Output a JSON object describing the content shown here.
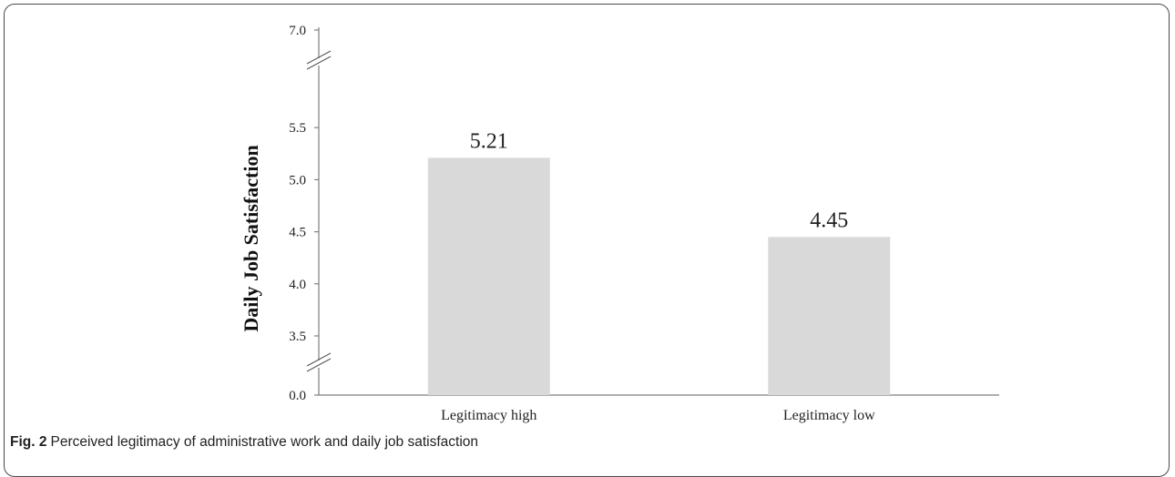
{
  "figure": {
    "label": "Fig. 2",
    "caption": "Perceived legitimacy of administrative work and daily job satisfaction"
  },
  "colors": {
    "bar": "#d9d9d9",
    "axis": "#7f7f7f"
  },
  "chart_data": {
    "type": "bar",
    "title": "",
    "xlabel": "",
    "ylabel": "Daily Job Satisfaction",
    "categories": [
      "Legitimacy high",
      "Legitimacy low"
    ],
    "values": [
      5.21,
      4.45
    ],
    "data_labels": [
      "5.21",
      "4.45"
    ],
    "ylim": [
      3.2,
      5.8
    ],
    "y_axis_break": true,
    "y_ticks": [
      "0.0",
      "3.5",
      "4.0",
      "4.5",
      "5.0",
      "5.5",
      "7.0"
    ],
    "grid": false,
    "legend": "none"
  }
}
